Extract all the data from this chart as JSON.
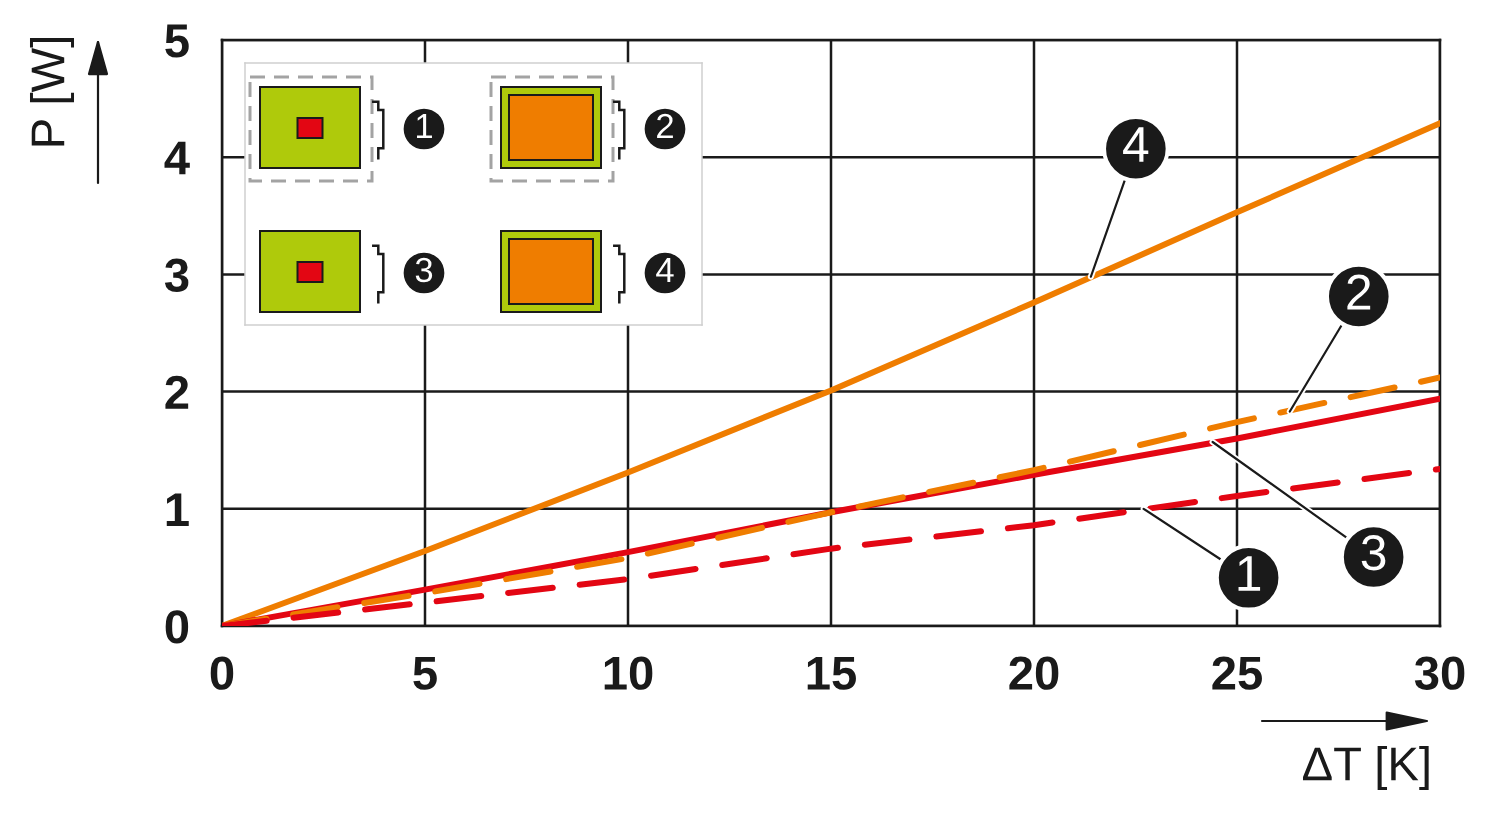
{
  "chart_data": {
    "type": "line",
    "xlabel": "ΔT [K]",
    "ylabel": "P [W]",
    "xlim": [
      0,
      30
    ],
    "ylim": [
      0,
      5
    ],
    "xticks": [
      0,
      5,
      10,
      15,
      20,
      25,
      30
    ],
    "yticks": [
      0,
      1,
      2,
      3,
      4,
      5
    ],
    "grid": true,
    "x": [
      0,
      5,
      10,
      15,
      20,
      25,
      30
    ],
    "series": [
      {
        "color": "#e30613",
        "line_style": "dashed",
        "values": [
          0,
          0.2,
          0.4,
          0.66,
          0.86,
          1.11,
          1.34
        ]
      },
      {
        "color": "#ef7d00",
        "line_style": "dashed",
        "values": [
          0,
          0.28,
          0.58,
          0.97,
          1.33,
          1.74,
          2.12
        ]
      },
      {
        "color": "#e30613",
        "line_style": "solid",
        "values": [
          0,
          0.31,
          0.63,
          0.97,
          1.29,
          1.6,
          1.94
        ]
      },
      {
        "color": "#ef7d00",
        "line_style": "solid",
        "values": [
          0,
          0.64,
          1.31,
          2.01,
          2.76,
          3.53,
          4.29
        ]
      }
    ],
    "annotations": [
      {
        "text": "1",
        "x": 22.7,
        "y": 1.0
      },
      {
        "text": "2",
        "x": 26.3,
        "y": 1.83
      },
      {
        "text": "3",
        "x": 24.4,
        "y": 1.57
      },
      {
        "text": "4",
        "x": 21.4,
        "y": 2.98
      },
      "1",
      "2",
      "3",
      "4"
    ]
  }
}
